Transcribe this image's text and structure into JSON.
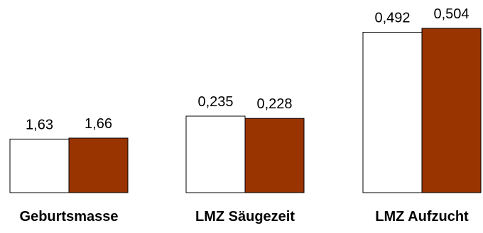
{
  "chart_data": [
    {
      "type": "bar",
      "categories": [
        "Geburtsmasse"
      ],
      "series": [
        {
          "values": [
            1.63
          ],
          "labels": [
            "1,63"
          ]
        },
        {
          "values": [
            1.66
          ],
          "labels": [
            "1,66"
          ]
        }
      ]
    },
    {
      "type": "bar",
      "categories": [
        "LMZ Säugezeit"
      ],
      "series": [
        {
          "values": [
            0.235
          ],
          "labels": [
            "0,235"
          ]
        },
        {
          "values": [
            0.228
          ],
          "labels": [
            "0,228"
          ]
        }
      ]
    },
    {
      "type": "bar",
      "categories": [
        "LMZ Aufzucht"
      ],
      "series": [
        {
          "values": [
            0.492
          ],
          "labels": [
            "0,492"
          ]
        },
        {
          "values": [
            0.504
          ],
          "labels": [
            "0,504"
          ]
        }
      ]
    }
  ],
  "colors": {
    "series_1": "#ffffff",
    "series_2": "#993300",
    "outline": "#000000"
  }
}
